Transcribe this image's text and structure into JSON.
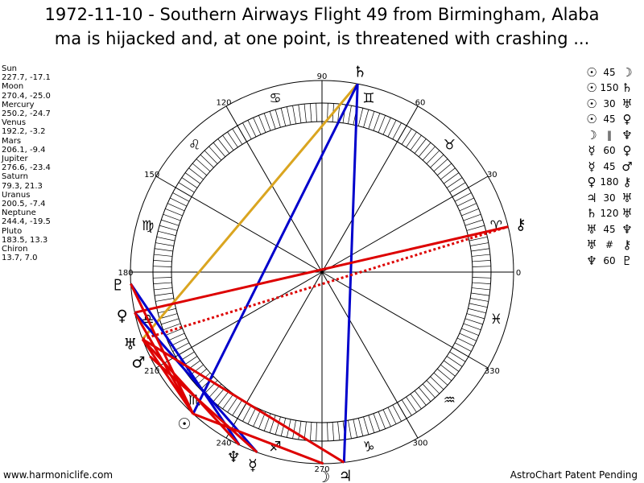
{
  "title_line1": "1972-11-10 - Southern Airways Flight 49 from Birmingham, Alaba",
  "title_line2": "ma is hijacked and, at one point, is threatened with crashing ...",
  "planets": [
    {
      "name": "Sun",
      "coords": "227.7, -17.1"
    },
    {
      "name": "Moon",
      "coords": "270.4, -25.0"
    },
    {
      "name": "Mercury",
      "coords": "250.2, -24.7"
    },
    {
      "name": "Venus",
      "coords": "192.2, -3.2"
    },
    {
      "name": "Mars",
      "coords": "206.1, -9.4"
    },
    {
      "name": "Jupiter",
      "coords": "276.6, -23.4"
    },
    {
      "name": "Saturn",
      "coords": "79.3, 21.3"
    },
    {
      "name": "Uranus",
      "coords": "200.5, -7.4"
    },
    {
      "name": "Neptune",
      "coords": "244.4, -19.5"
    },
    {
      "name": "Pluto",
      "coords": "183.5, 13.3"
    },
    {
      "name": "Chiron",
      "coords": "13.7, 7.0"
    }
  ],
  "aspects": [
    {
      "p1": "☉",
      "angle": "45",
      "p2": "☽"
    },
    {
      "p1": "☉",
      "angle": "150",
      "p2": "♄"
    },
    {
      "p1": "☉",
      "angle": "30",
      "p2": "♅"
    },
    {
      "p1": "☉",
      "angle": "45",
      "p2": "♀"
    },
    {
      "p1": "☽",
      "angle": "‖",
      "p2": "♆"
    },
    {
      "p1": "☿",
      "angle": "60",
      "p2": "♀"
    },
    {
      "p1": "☿",
      "angle": "45",
      "p2": "♂"
    },
    {
      "p1": "♀",
      "angle": "180",
      "p2": "⚷"
    },
    {
      "p1": "♃",
      "angle": "30",
      "p2": "♅"
    },
    {
      "p1": "♄",
      "angle": "120",
      "p2": "♅"
    },
    {
      "p1": "♅",
      "angle": "45",
      "p2": "♆"
    },
    {
      "p1": "♅",
      "angle": "#",
      "p2": "⚷"
    },
    {
      "p1": "♆",
      "angle": "60",
      "p2": "♇"
    }
  ],
  "degree_labels": [
    "0",
    "30",
    "60",
    "90",
    "120",
    "150",
    "180",
    "210",
    "240",
    "270",
    "300",
    "330"
  ],
  "zodiac": [
    {
      "sign": "aries",
      "glyph": "♈"
    },
    {
      "sign": "taurus",
      "glyph": "♉"
    },
    {
      "sign": "gemini",
      "glyph": "♊"
    },
    {
      "sign": "cancer",
      "glyph": "♋"
    },
    {
      "sign": "leo",
      "glyph": "♌"
    },
    {
      "sign": "virgo",
      "glyph": "♍"
    },
    {
      "sign": "libra",
      "glyph": "♎"
    },
    {
      "sign": "scorpio",
      "glyph": "♏"
    },
    {
      "sign": "sagittarius",
      "glyph": "♐"
    },
    {
      "sign": "capricorn",
      "glyph": "♑"
    },
    {
      "sign": "aquarius",
      "glyph": "♒"
    },
    {
      "sign": "pisces",
      "glyph": "♓"
    }
  ],
  "planet_glyphs": [
    {
      "name": "sun",
      "glyph": "☉",
      "lon": 227.7
    },
    {
      "name": "moon",
      "glyph": "☽",
      "lon": 270.4
    },
    {
      "name": "mercury",
      "glyph": "☿",
      "lon": 250.2
    },
    {
      "name": "venus",
      "glyph": "♀",
      "lon": 192.2
    },
    {
      "name": "mars",
      "glyph": "♂",
      "lon": 206.1
    },
    {
      "name": "jupiter",
      "glyph": "♃",
      "lon": 276.6
    },
    {
      "name": "saturn",
      "glyph": "♄",
      "lon": 79.3
    },
    {
      "name": "uranus",
      "glyph": "♅",
      "lon": 200.5
    },
    {
      "name": "neptune",
      "glyph": "♆",
      "lon": 244.4
    },
    {
      "name": "pluto",
      "glyph": "♇",
      "lon": 183.5
    },
    {
      "name": "chiron",
      "glyph": "⚷",
      "lon": 13.7
    }
  ],
  "aspect_lines": [
    {
      "a": "saturn",
      "b": "uranus",
      "color": "#DAA520"
    },
    {
      "a": "saturn",
      "b": "jupiter",
      "color": "#0000CC"
    },
    {
      "a": "sun",
      "b": "saturn",
      "color": "#0000CC"
    },
    {
      "a": "venus",
      "b": "chiron",
      "color": "#DD0000"
    },
    {
      "a": "uranus",
      "b": "chiron",
      "color": "#DD0000",
      "dashed": true
    },
    {
      "a": "pluto",
      "b": "neptune",
      "color": "#0000CC"
    },
    {
      "a": "mercury",
      "b": "venus",
      "color": "#0000CC"
    },
    {
      "a": "sun",
      "b": "uranus",
      "color": "#DD0000"
    },
    {
      "a": "sun",
      "b": "venus",
      "color": "#DD0000"
    },
    {
      "a": "mercury",
      "b": "mars",
      "color": "#DD0000"
    },
    {
      "a": "jupiter",
      "b": "uranus",
      "color": "#DD0000"
    },
    {
      "a": "uranus",
      "b": "neptune",
      "color": "#DD0000"
    },
    {
      "a": "sun",
      "b": "moon",
      "color": "#DD0000"
    },
    {
      "a": "pluto",
      "b": "sun",
      "color": "#DD0000"
    }
  ],
  "footer_left": "www.harmoniclife.com",
  "footer_right": "AstroChart Patent Pending"
}
